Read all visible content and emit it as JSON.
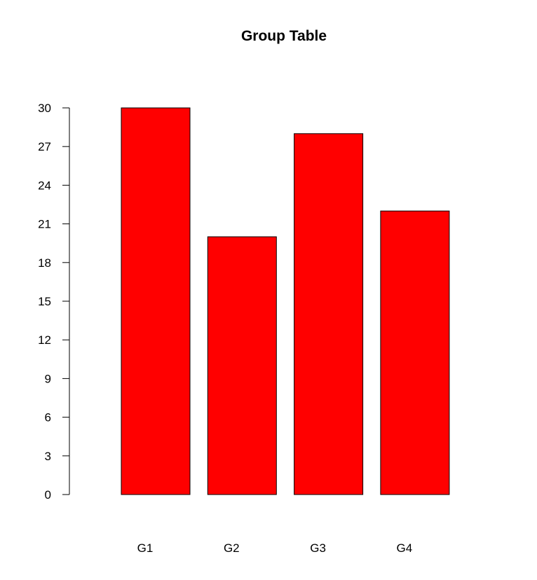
{
  "chart_data": {
    "type": "bar",
    "title": "Group Table",
    "xlabel": "",
    "ylabel": "",
    "categories": [
      "G1",
      "G2",
      "G3",
      "G4"
    ],
    "values": [
      30,
      20,
      28,
      22
    ],
    "ylim": [
      0,
      30
    ],
    "yticks": [
      0,
      3,
      6,
      9,
      12,
      15,
      18,
      21,
      24,
      27,
      30
    ],
    "grid": false,
    "legend": "none",
    "colors": {
      "bar_fill": "#ff0000",
      "bar_stroke": "#000000",
      "axis": "#000000",
      "background": "#ffffff"
    }
  }
}
